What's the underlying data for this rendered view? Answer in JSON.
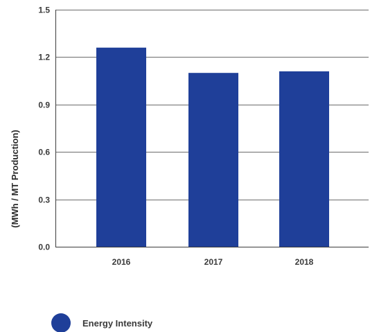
{
  "chart_data": {
    "type": "bar",
    "title": "",
    "xlabel": "",
    "ylabel": "(MWh / MT Production)",
    "categories": [
      "2016",
      "2017",
      "2018"
    ],
    "series": [
      {
        "name": "Energy Intensity",
        "values": [
          1.26,
          1.1,
          1.11
        ]
      }
    ],
    "ylim": [
      0,
      1.5
    ],
    "yticks": [
      "0.0",
      "0.3",
      "0.6",
      "0.9",
      "1.2",
      "1.5"
    ],
    "grid": true,
    "legend_position": "bottom-left"
  },
  "colors": {
    "bar": "#1f3f99",
    "grid": "#3a3a3a",
    "text": "#3a3a3a"
  }
}
